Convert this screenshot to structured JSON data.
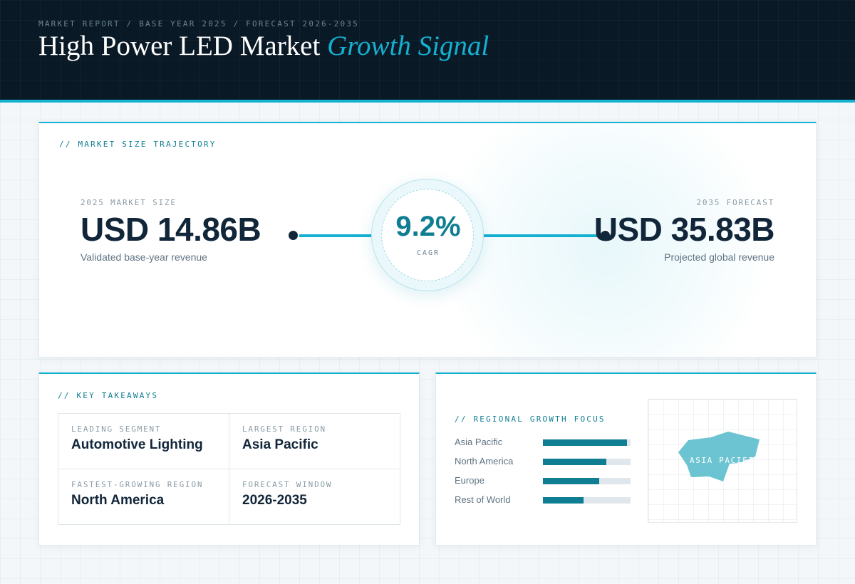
{
  "header": {
    "eyebrow": "MARKET REPORT / BASE YEAR 2025 / FORECAST 2026-2035",
    "title_main": "High Power LED Market",
    "title_accent": "Growth Signal"
  },
  "trajectory": {
    "label": "// MARKET SIZE TRAJECTORY",
    "base": {
      "caption": "2025 MARKET SIZE",
      "value": "USD 14.86B",
      "note": "Validated base-year revenue"
    },
    "cagr": {
      "value": "9.2%",
      "caption": "CAGR"
    },
    "forecast": {
      "caption": "2035 FORECAST",
      "value": "USD 35.83B",
      "note": "Projected global revenue"
    }
  },
  "takeaways": {
    "label": "// KEY TAKEAWAYS",
    "items": [
      {
        "caption": "LEADING SEGMENT",
        "value": "Automotive Lighting"
      },
      {
        "caption": "LARGEST REGION",
        "value": "Asia Pacific"
      },
      {
        "caption": "FASTEST-GROWING REGION",
        "value": "North America"
      },
      {
        "caption": "FORECAST WINDOW",
        "value": "2026-2035"
      }
    ]
  },
  "regional": {
    "label": "// REGIONAL GROWTH FOCUS",
    "bars": [
      {
        "name": "Asia Pacific",
        "level": 0.96
      },
      {
        "name": "North America",
        "level": 0.72
      },
      {
        "name": "Europe",
        "level": 0.64
      },
      {
        "name": "Rest of World",
        "level": 0.46
      }
    ],
    "map_label": "ASIA PACIFIC"
  },
  "colors": {
    "accent": "#14b0d0",
    "teal": "#0f7d92",
    "navy": "#0a1926",
    "map_fill": "#6cc3d1"
  }
}
